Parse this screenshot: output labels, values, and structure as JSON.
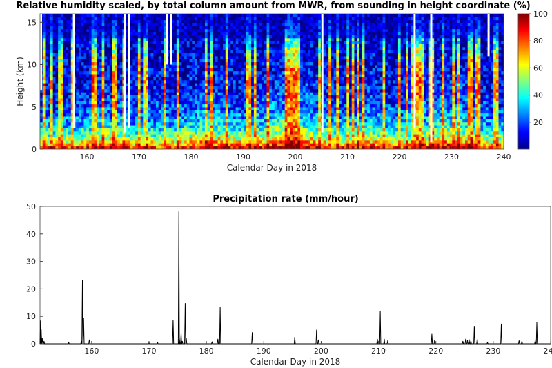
{
  "chart_data": [
    {
      "type": "heatmap",
      "title": "Relative humidity scaled, by total column amount from MWR, from sounding in height coordinate  (%)",
      "xlabel": "Calendar Day in 2018",
      "ylabel": "Height (km)",
      "xlim": [
        151,
        240
      ],
      "ylim": [
        0,
        16
      ],
      "xticks": [
        160,
        170,
        180,
        190,
        200,
        210,
        220,
        230,
        240
      ],
      "yticks": [
        0,
        5,
        10,
        15
      ],
      "colorbar": {
        "range": [
          0,
          100
        ],
        "ticks": [
          20,
          40,
          60,
          80,
          100
        ],
        "colormap": "jet"
      },
      "colors": {
        "low": "#00008f",
        "high": "#800000"
      },
      "data_gaps_days": [
        151.2,
        157.5,
        167.3,
        168.1,
        175.3,
        176.2,
        205.2,
        222.9,
        226.1,
        237.1
      ]
    },
    {
      "type": "line",
      "title": "Precipitation rate  (mm/hour)",
      "xlabel": "Calendar Day in 2018",
      "ylabel": "",
      "xlim": [
        151,
        240
      ],
      "ylim": [
        0,
        50
      ],
      "xticks": [
        160,
        170,
        180,
        190,
        200,
        210,
        220,
        230,
        240
      ],
      "yticks": [
        0,
        10,
        20,
        30,
        40,
        50
      ],
      "grid": false,
      "line_color": "#000000",
      "x": [
        151.1,
        151.2,
        151.4,
        151.7,
        156.0,
        158.2,
        158.4,
        158.6,
        159.6,
        170.0,
        171.5,
        174.2,
        175.2,
        175.3,
        175.6,
        175.8,
        176.3,
        176.5,
        181.0,
        182.0,
        182.4,
        188.0,
        195.4,
        199.2,
        199.5,
        209.8,
        210.1,
        210.3,
        211.0,
        211.6,
        219.3,
        219.8,
        224.7,
        225.2,
        225.5,
        225.8,
        226.1,
        226.7,
        227.2,
        229.0,
        231.4,
        234.5,
        235.0,
        237.3,
        237.6
      ],
      "y": [
        8.5,
        5.5,
        2.0,
        1.0,
        0.5,
        1.0,
        23.3,
        9.3,
        1.5,
        0.5,
        0.5,
        8.8,
        48.2,
        2.0,
        3.8,
        1.0,
        14.8,
        2.0,
        0.8,
        1.8,
        13.5,
        4.2,
        2.5,
        5.1,
        1.5,
        1.8,
        1.2,
        12.0,
        1.8,
        1.2,
        3.6,
        1.5,
        1.0,
        1.8,
        1.4,
        1.6,
        1.2,
        6.5,
        1.8,
        0.5,
        7.3,
        1.2,
        1.0,
        1.2,
        7.8
      ]
    }
  ]
}
